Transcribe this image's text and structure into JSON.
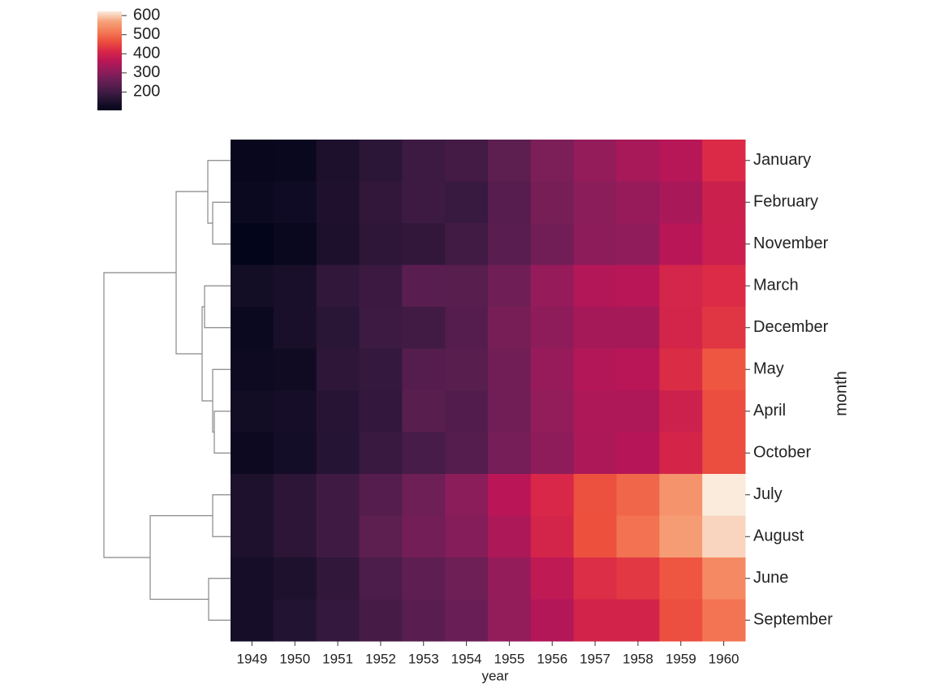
{
  "chart_data": {
    "type": "heatmap",
    "x_label": "year",
    "y_label": "month",
    "x_categories": [
      "1949",
      "1950",
      "1951",
      "1952",
      "1953",
      "1954",
      "1955",
      "1956",
      "1957",
      "1958",
      "1959",
      "1960"
    ],
    "y_categories": [
      "January",
      "February",
      "November",
      "March",
      "December",
      "May",
      "April",
      "October",
      "July",
      "August",
      "June",
      "September"
    ],
    "values": [
      [
        112,
        115,
        145,
        171,
        196,
        204,
        242,
        284,
        315,
        340,
        360,
        417
      ],
      [
        118,
        126,
        150,
        180,
        196,
        188,
        233,
        277,
        301,
        318,
        342,
        391
      ],
      [
        104,
        114,
        146,
        172,
        180,
        203,
        237,
        271,
        305,
        310,
        362,
        390
      ],
      [
        132,
        141,
        178,
        193,
        236,
        235,
        267,
        317,
        356,
        362,
        406,
        419
      ],
      [
        118,
        140,
        166,
        194,
        201,
        229,
        278,
        306,
        336,
        337,
        405,
        432
      ],
      [
        121,
        125,
        172,
        183,
        229,
        234,
        270,
        318,
        355,
        363,
        420,
        472
      ],
      [
        129,
        135,
        163,
        181,
        235,
        227,
        269,
        313,
        348,
        348,
        396,
        461
      ],
      [
        119,
        133,
        162,
        191,
        211,
        229,
        274,
        306,
        347,
        359,
        407,
        461
      ],
      [
        148,
        170,
        199,
        230,
        264,
        302,
        364,
        413,
        465,
        491,
        548,
        622
      ],
      [
        148,
        170,
        199,
        242,
        272,
        293,
        347,
        405,
        467,
        505,
        559,
        606
      ],
      [
        135,
        149,
        178,
        218,
        243,
        264,
        315,
        374,
        422,
        435,
        472,
        535
      ],
      [
        136,
        158,
        184,
        209,
        237,
        259,
        312,
        355,
        404,
        404,
        463,
        508
      ]
    ],
    "colormap": [
      "#03051a",
      "#221331",
      "#451c47",
      "#691f55",
      "#921c5b",
      "#b91657",
      "#d92847",
      "#ed513e",
      "#f47d57",
      "#f6a47c",
      "#faebdd"
    ],
    "clim": [
      104,
      622
    ],
    "cticks": [
      200,
      300,
      400,
      500,
      600
    ]
  }
}
